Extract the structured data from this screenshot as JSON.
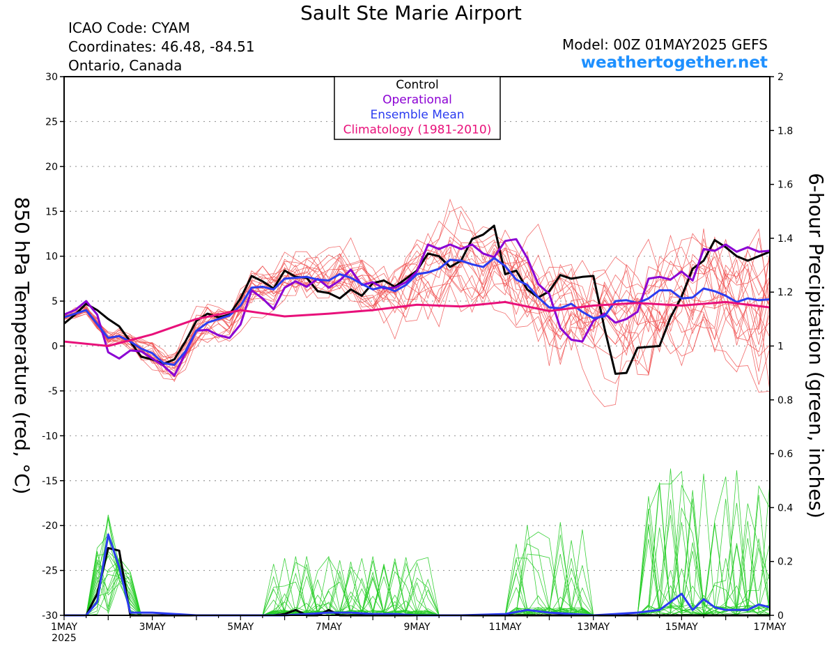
{
  "header": {
    "title": "Sault Ste Marie Airport",
    "icao": "ICAO Code: CYAM",
    "coordinates": "Coordinates: 46.48, -84.51",
    "region": "Ontario, Canada",
    "model": "Model: 00Z 01MAY2025 GEFS",
    "site": "weathertogether.net"
  },
  "chart_data": {
    "type": "line",
    "title": "Sault Ste Marie Airport",
    "ylabel_left": "850 hPa Temperature (red, °C)",
    "ylabel_right": "6-hour Precipitation (green, inches)",
    "xlim": [
      0,
      16
    ],
    "ylim_left": [
      -30,
      30
    ],
    "ylim_right": [
      0,
      2
    ],
    "x_ticks": [
      {
        "x": 0,
        "label": "1MAY",
        "sublabel": "2025"
      },
      {
        "x": 2,
        "label": "3MAY"
      },
      {
        "x": 4,
        "label": "5MAY"
      },
      {
        "x": 6,
        "label": "7MAY"
      },
      {
        "x": 8,
        "label": "9MAY"
      },
      {
        "x": 10,
        "label": "11MAY"
      },
      {
        "x": 12,
        "label": "13MAY"
      },
      {
        "x": 14,
        "label": "15MAY"
      },
      {
        "x": 16,
        "label": "17MAY"
      }
    ],
    "y_ticks_left": [
      30,
      25,
      20,
      15,
      10,
      5,
      0,
      -5,
      -10,
      -15,
      -20,
      -25,
      -30
    ],
    "y_ticks_left_labels": [
      "30",
      "25",
      "20",
      "15",
      "10",
      "5",
      "0",
      "-5",
      "-10",
      "-15",
      "-20",
      "-25",
      "-30"
    ],
    "y_ticks_right": [
      2,
      1.8,
      1.6,
      1.4,
      1.2,
      1,
      0.8,
      0.6,
      0.4,
      0.2,
      0
    ],
    "y_ticks_right_labels": [
      "2",
      "1.8",
      "1.6",
      "1.4",
      "1.2",
      "1",
      "0.8",
      "0.6",
      "0.4",
      "0.2",
      "0"
    ],
    "grid": true,
    "legend": {
      "placement": "top-center",
      "entries": [
        {
          "label": "Control",
          "color": "#000000"
        },
        {
          "label": "Operational",
          "color": "#8b00d3"
        },
        {
          "label": "Ensemble Mean",
          "color": "#2b3cf0"
        },
        {
          "label": "Climatology (1981-2010)",
          "color": "#e8107a"
        }
      ]
    },
    "colors": {
      "member_temp": "#f05050",
      "member_precip": "#22cc22",
      "control": "#000000",
      "operational": "#8b00d3",
      "mean": "#2b3cf0",
      "climatology": "#e8107a"
    },
    "temperature_series": [
      {
        "name": "Control",
        "color": "#000000",
        "points": [
          [
            0,
            2.5
          ],
          [
            0.25,
            3.5
          ],
          [
            0.5,
            4.7
          ],
          [
            0.75,
            4
          ],
          [
            1,
            3
          ],
          [
            1.25,
            2.2
          ],
          [
            1.5,
            0.5
          ],
          [
            1.75,
            -1.2
          ],
          [
            2,
            -1.5
          ],
          [
            2.25,
            -2
          ],
          [
            2.5,
            -1.5
          ],
          [
            2.75,
            0.5
          ],
          [
            3,
            2.8
          ],
          [
            3.25,
            3.6
          ],
          [
            3.5,
            3.2
          ],
          [
            3.75,
            3.5
          ],
          [
            4,
            5.3
          ],
          [
            4.25,
            7.8
          ],
          [
            4.5,
            7.2
          ],
          [
            4.75,
            6.4
          ],
          [
            5,
            8.4
          ],
          [
            5.25,
            7.7
          ],
          [
            5.5,
            7.6
          ],
          [
            5.75,
            6.1
          ],
          [
            6,
            5.9
          ],
          [
            6.25,
            5.3
          ],
          [
            6.5,
            6.3
          ],
          [
            6.75,
            5.6
          ],
          [
            7,
            7
          ],
          [
            7.25,
            7.3
          ],
          [
            7.5,
            6.6
          ],
          [
            7.75,
            7.5
          ],
          [
            8,
            8.4
          ],
          [
            8.25,
            10.3
          ],
          [
            8.5,
            10
          ],
          [
            8.75,
            8.8
          ],
          [
            9,
            9.5
          ],
          [
            9.25,
            11.9
          ],
          [
            9.5,
            12.4
          ],
          [
            9.75,
            13.4
          ],
          [
            10,
            8
          ],
          [
            10.25,
            8.4
          ],
          [
            10.5,
            6.3
          ],
          [
            10.75,
            5.4
          ],
          [
            11,
            6.1
          ],
          [
            11.25,
            7.9
          ],
          [
            11.5,
            7.5
          ],
          [
            11.75,
            7.7
          ],
          [
            12,
            7.8
          ],
          [
            12.25,
            2
          ],
          [
            12.5,
            -3.1
          ],
          [
            12.75,
            -3
          ],
          [
            13,
            -0.2
          ],
          [
            13.25,
            -0.1
          ],
          [
            13.5,
            0
          ],
          [
            13.75,
            3.2
          ],
          [
            14,
            5.5
          ],
          [
            14.25,
            8.6
          ],
          [
            14.5,
            9.5
          ],
          [
            14.75,
            11.8
          ],
          [
            15,
            11
          ],
          [
            15.25,
            10
          ],
          [
            15.5,
            9.5
          ],
          [
            15.75,
            10
          ],
          [
            16,
            10.5
          ]
        ]
      },
      {
        "name": "Operational",
        "color": "#8b00d3",
        "points": [
          [
            0,
            3.5
          ],
          [
            0.25,
            4
          ],
          [
            0.5,
            5
          ],
          [
            0.75,
            3.5
          ],
          [
            1,
            -0.7
          ],
          [
            1.25,
            -1.4
          ],
          [
            1.5,
            -0.5
          ],
          [
            1.75,
            -0.6
          ],
          [
            2,
            -1.4
          ],
          [
            2.25,
            -2.2
          ],
          [
            2.5,
            -3.3
          ],
          [
            2.75,
            -0.8
          ],
          [
            3,
            1.7
          ],
          [
            3.25,
            1.8
          ],
          [
            3.5,
            1.2
          ],
          [
            3.75,
            0.9
          ],
          [
            4,
            2.4
          ],
          [
            4.25,
            6.2
          ],
          [
            4.5,
            5.3
          ],
          [
            4.75,
            4.1
          ],
          [
            5,
            6.5
          ],
          [
            5.25,
            7.2
          ],
          [
            5.5,
            6.6
          ],
          [
            5.75,
            7.5
          ],
          [
            6,
            6.5
          ],
          [
            6.25,
            7.3
          ],
          [
            6.5,
            8.5
          ],
          [
            6.75,
            6.8
          ],
          [
            7,
            7.1
          ],
          [
            7.25,
            6.4
          ],
          [
            7.5,
            6.5
          ],
          [
            7.75,
            7.1
          ],
          [
            8,
            8.3
          ],
          [
            8.25,
            11.3
          ],
          [
            8.5,
            10.8
          ],
          [
            8.75,
            11.3
          ],
          [
            9,
            10.8
          ],
          [
            9.25,
            11.3
          ],
          [
            9.5,
            10.3
          ],
          [
            9.75,
            9.9
          ],
          [
            10,
            11.7
          ],
          [
            10.25,
            11.9
          ],
          [
            10.5,
            9.8
          ],
          [
            10.75,
            6.9
          ],
          [
            11,
            5.8
          ],
          [
            11.25,
            2
          ],
          [
            11.5,
            0.7
          ],
          [
            11.75,
            0.5
          ],
          [
            12,
            2.8
          ],
          [
            12.25,
            3.6
          ],
          [
            12.5,
            2.6
          ],
          [
            12.75,
            3
          ],
          [
            13,
            3.8
          ],
          [
            13.25,
            7.5
          ],
          [
            13.5,
            7.7
          ],
          [
            13.75,
            7.4
          ],
          [
            14,
            8.3
          ],
          [
            14.25,
            7.3
          ],
          [
            14.5,
            10.8
          ],
          [
            14.75,
            10.6
          ],
          [
            15,
            11.3
          ],
          [
            15.25,
            10.5
          ],
          [
            15.5,
            11
          ],
          [
            15.75,
            10.5
          ],
          [
            16,
            10.6
          ]
        ]
      },
      {
        "name": "Ensemble Mean",
        "color": "#2b3cf0",
        "points": [
          [
            0,
            3.2
          ],
          [
            0.5,
            4
          ],
          [
            1,
            0.9
          ],
          [
            1.25,
            1.1
          ],
          [
            1.5,
            0.5
          ],
          [
            1.75,
            -0.3
          ],
          [
            2,
            -0.8
          ],
          [
            2.25,
            -1.9
          ],
          [
            2.5,
            -2.1
          ],
          [
            2.75,
            -0.6
          ],
          [
            3,
            1.7
          ],
          [
            3.25,
            2.6
          ],
          [
            3.5,
            3
          ],
          [
            3.75,
            3.4
          ],
          [
            4,
            4.5
          ],
          [
            4.25,
            6.5
          ],
          [
            4.5,
            6.6
          ],
          [
            4.75,
            6.3
          ],
          [
            5,
            7.5
          ],
          [
            5.25,
            7.6
          ],
          [
            5.5,
            7.7
          ],
          [
            5.75,
            7.4
          ],
          [
            6,
            7.3
          ],
          [
            6.25,
            8
          ],
          [
            6.5,
            7.6
          ],
          [
            6.75,
            6.9
          ],
          [
            7,
            6.3
          ],
          [
            7.25,
            6.6
          ],
          [
            7.5,
            6.1
          ],
          [
            7.75,
            6.8
          ],
          [
            8,
            8
          ],
          [
            8.25,
            8.2
          ],
          [
            8.5,
            8.6
          ],
          [
            8.75,
            9.6
          ],
          [
            9,
            9.5
          ],
          [
            9.25,
            9.1
          ],
          [
            9.5,
            8.8
          ],
          [
            9.75,
            9.8
          ],
          [
            10,
            8.9
          ],
          [
            10.25,
            7.4
          ],
          [
            10.5,
            6.8
          ],
          [
            10.75,
            5.4
          ],
          [
            11,
            4.3
          ],
          [
            11.25,
            4.2
          ],
          [
            11.5,
            4.7
          ],
          [
            11.75,
            3.8
          ],
          [
            12,
            3.1
          ],
          [
            12.25,
            3.3
          ],
          [
            12.5,
            5
          ],
          [
            12.75,
            5.1
          ],
          [
            13,
            4.8
          ],
          [
            13.25,
            5.3
          ],
          [
            13.5,
            6.2
          ],
          [
            13.75,
            6.2
          ],
          [
            14,
            5.3
          ],
          [
            14.25,
            5.4
          ],
          [
            14.5,
            6.4
          ],
          [
            14.75,
            6.1
          ],
          [
            15,
            5.6
          ],
          [
            15.25,
            4.9
          ],
          [
            15.5,
            5.3
          ],
          [
            15.75,
            5.1
          ],
          [
            16,
            5.2
          ]
        ]
      },
      {
        "name": "Climatology (1981-2010)",
        "color": "#e8107a",
        "points": [
          [
            0,
            0.5
          ],
          [
            1,
            0
          ],
          [
            2,
            1.3
          ],
          [
            3,
            3
          ],
          [
            4,
            4
          ],
          [
            5,
            3.3
          ],
          [
            6,
            3.6
          ],
          [
            7,
            4
          ],
          [
            8,
            4.6
          ],
          [
            9,
            4.4
          ],
          [
            10,
            4.9
          ],
          [
            11,
            3.9
          ],
          [
            12,
            4.5
          ],
          [
            13,
            4.8
          ],
          [
            14,
            4.5
          ],
          [
            15,
            4.9
          ],
          [
            16,
            4.3
          ]
        ]
      }
    ],
    "precipitation_series": [
      {
        "name": "Control",
        "color": "#000000",
        "points": [
          [
            0,
            0
          ],
          [
            0.5,
            0
          ],
          [
            0.75,
            0.08
          ],
          [
            1,
            0.25
          ],
          [
            1.25,
            0.24
          ],
          [
            1.5,
            0
          ],
          [
            2,
            0
          ],
          [
            4,
            0
          ],
          [
            4.75,
            0
          ],
          [
            5,
            0.005
          ],
          [
            5.25,
            0.02
          ],
          [
            5.5,
            0
          ],
          [
            5.75,
            0
          ],
          [
            6,
            0.02
          ],
          [
            6.25,
            0
          ],
          [
            7,
            0
          ],
          [
            8,
            0
          ],
          [
            10,
            0
          ],
          [
            12,
            0
          ],
          [
            14,
            0
          ],
          [
            16,
            0
          ]
        ]
      },
      {
        "name": "Ensemble Mean",
        "color": "#2b3cf0",
        "points": [
          [
            0,
            0
          ],
          [
            0.5,
            0
          ],
          [
            0.75,
            0.05
          ],
          [
            1,
            0.3
          ],
          [
            1.25,
            0.18
          ],
          [
            1.5,
            0.01
          ],
          [
            2,
            0.01
          ],
          [
            3,
            0
          ],
          [
            4,
            0
          ],
          [
            5,
            0
          ],
          [
            5.5,
            0.005
          ],
          [
            6,
            0.01
          ],
          [
            6.5,
            0.01
          ],
          [
            7,
            0.005
          ],
          [
            7.5,
            0.005
          ],
          [
            8,
            0
          ],
          [
            9,
            0
          ],
          [
            10,
            0.005
          ],
          [
            10.5,
            0.02
          ],
          [
            11,
            0.01
          ],
          [
            12,
            0
          ],
          [
            12.5,
            0.005
          ],
          [
            13,
            0.01
          ],
          [
            13.5,
            0.02
          ],
          [
            14,
            0.08
          ],
          [
            14.25,
            0.02
          ],
          [
            14.5,
            0.06
          ],
          [
            14.75,
            0.03
          ],
          [
            15,
            0.02
          ],
          [
            15.5,
            0.02
          ],
          [
            15.75,
            0.04
          ],
          [
            16,
            0.03
          ]
        ]
      }
    ]
  }
}
